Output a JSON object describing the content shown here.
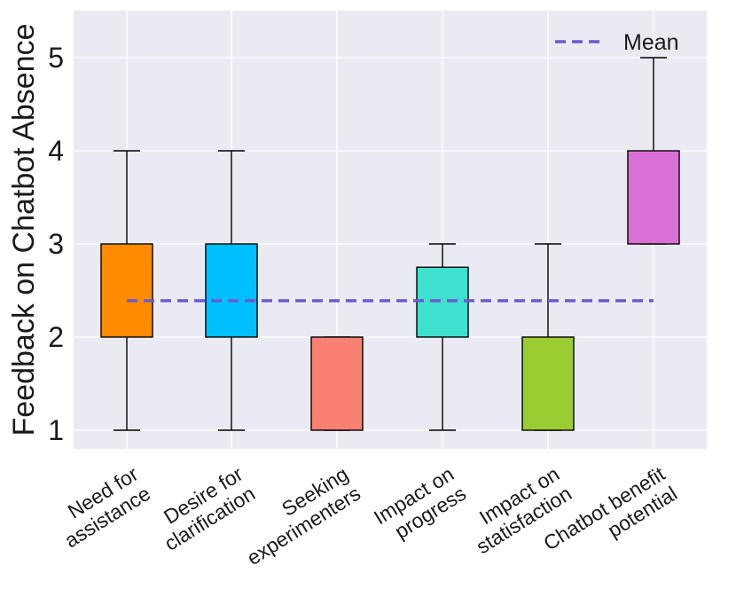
{
  "chart_data": {
    "type": "boxplot",
    "title": "",
    "xlabel": "",
    "ylabel": "Feedback on Chatbot Absence",
    "ylim": [
      0.8,
      5.5
    ],
    "yticks": [
      1,
      2,
      3,
      4,
      5
    ],
    "grid": true,
    "legend": {
      "placement": "top-right",
      "entries": [
        "Mean"
      ]
    },
    "mean_line": {
      "label": "Mean",
      "value": 2.39,
      "color": "#6a5acd"
    },
    "categories": [
      [
        "Need for",
        "assistance"
      ],
      [
        "Desire for",
        "clarification"
      ],
      [
        "Seeking",
        "experimenters"
      ],
      [
        "Impact on",
        "progress"
      ],
      [
        "Impact on",
        "statisfaction"
      ],
      [
        "Chatbot benefit",
        "potential"
      ]
    ],
    "boxes": [
      {
        "whisker_low": 1,
        "q1": 2,
        "median": 2,
        "q3": 3,
        "whisker_high": 4,
        "color": "#ff8c00"
      },
      {
        "whisker_low": 1,
        "q1": 2,
        "median": 2,
        "q3": 3,
        "whisker_high": 4,
        "color": "#00bfff"
      },
      {
        "whisker_low": 1,
        "q1": 1,
        "median": 2,
        "q3": 2,
        "whisker_high": 2,
        "color": "#fa8072"
      },
      {
        "whisker_low": 1,
        "q1": 2,
        "median": 2,
        "q3": 2.75,
        "whisker_high": 3,
        "color": "#40e0d0"
      },
      {
        "whisker_low": 1,
        "q1": 1,
        "median": 2,
        "q3": 2,
        "whisker_high": 3,
        "color": "#9acd32"
      },
      {
        "whisker_low": 3,
        "q1": 3,
        "median": 4,
        "q3": 4,
        "whisker_high": 5,
        "color": "#da70d6"
      }
    ]
  }
}
